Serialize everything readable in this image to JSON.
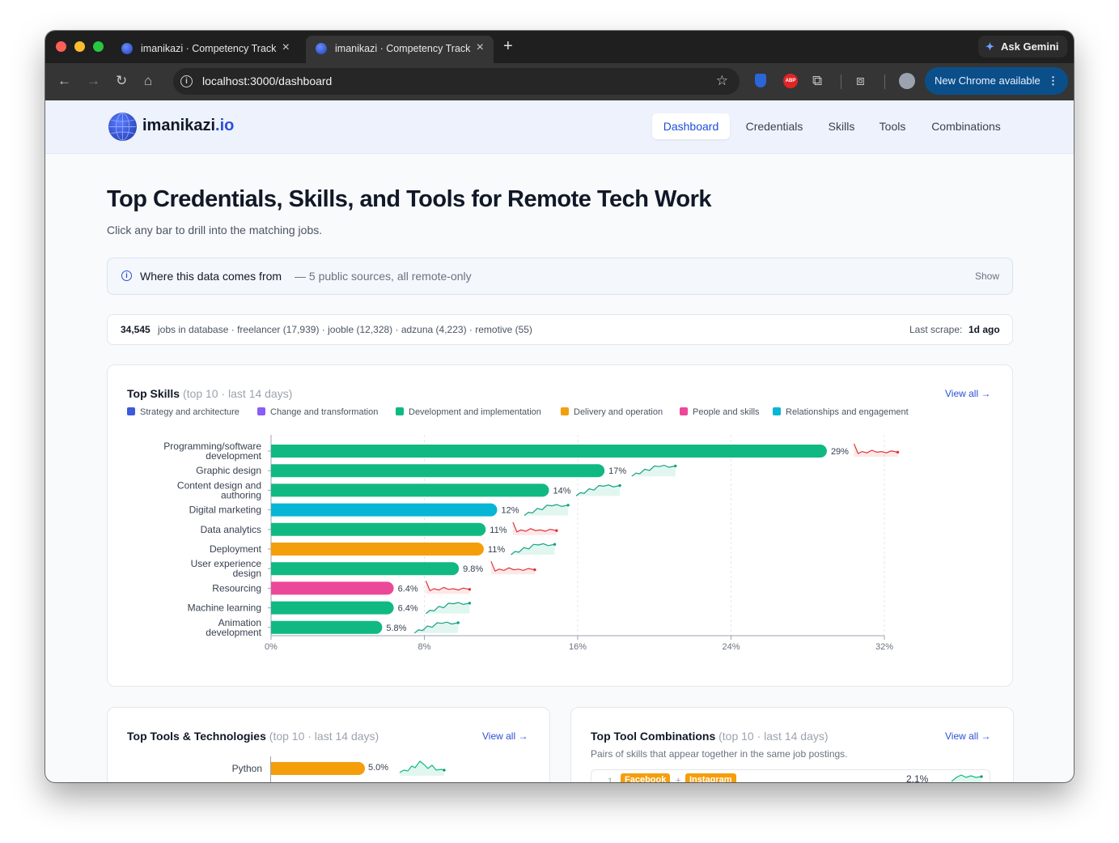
{
  "browser": {
    "tabs": [
      {
        "title": "imanikazi · Competency Track",
        "active": false
      },
      {
        "title": "imanikazi · Competency Track",
        "active": true
      }
    ],
    "gemini_label": "Ask Gemini",
    "url": "localhost:3000/dashboard",
    "update_label": "New Chrome available",
    "abp_label": "ABP"
  },
  "site": {
    "logo_main": "imanikazi",
    "logo_suffix": ".io",
    "nav": [
      "Dashboard",
      "Credentials",
      "Skills",
      "Tools",
      "Combinations"
    ],
    "active_nav": "Dashboard"
  },
  "page": {
    "title": "Top Credentials, Skills, and Tools for Remote Tech Work",
    "subtitle": "Click any bar to drill into the matching jobs.",
    "info_title": "Where this data comes from",
    "info_detail": "— 5 public sources, all remote-only",
    "info_toggle": "Show",
    "stats_count": "34,545",
    "stats_rest": "jobs in database · freelancer (17,939) · jooble (12,328) · adzuna (4,223) · remotive (55)",
    "last_scrape_label": "Last scrape:",
    "last_scrape_value": "1d ago"
  },
  "skills_card": {
    "title": "Top Skills",
    "meta": "(top 10 · last 14 days)",
    "view_all": "View all →",
    "legend": [
      {
        "label": "Strategy and architecture",
        "color": "#3b5bdb"
      },
      {
        "label": "Change and transformation",
        "color": "#8b5cf6"
      },
      {
        "label": "Development and implementation",
        "color": "#10b981"
      },
      {
        "label": "Delivery and operation",
        "color": "#f59e0b"
      },
      {
        "label": "People and skills",
        "color": "#ec4899"
      },
      {
        "label": "Relationships and engagement",
        "color": "#06b6d4"
      }
    ]
  },
  "tools_card": {
    "title": "Top Tools & Technologies",
    "meta": "(top 10 · last 14 days)",
    "view_all": "View all →",
    "first_label": "Python",
    "first_value": "5.0%"
  },
  "combos_card": {
    "title": "Top Tool Combinations",
    "meta": "(top 10 · last 14 days)",
    "view_all": "View all →",
    "description": "Pairs of skills that appear together in the same job postings.",
    "first_rank": "1",
    "first_a": "Facebook",
    "first_plus": "+",
    "first_b": "Instagram",
    "first_value": "2.1%"
  },
  "chart_data": {
    "type": "bar",
    "orientation": "horizontal",
    "categories": [
      [
        "Programming/software",
        "development"
      ],
      [
        "Graphic design"
      ],
      [
        "Content design and",
        "authoring"
      ],
      [
        "Digital marketing"
      ],
      [
        "Data analytics"
      ],
      [
        "Deployment"
      ],
      [
        "User experience",
        "design"
      ],
      [
        "Resourcing"
      ],
      [
        "Machine learning"
      ],
      [
        "Animation",
        "development"
      ]
    ],
    "values": [
      29,
      17.4,
      14.5,
      11.8,
      11.2,
      11.1,
      9.8,
      6.4,
      6.4,
      5.8
    ],
    "value_labels": [
      "29%",
      "17%",
      "14%",
      "12%",
      "11%",
      "11%",
      "9.8%",
      "6.4%",
      "6.4%",
      "5.8%"
    ],
    "bar_groups": [
      "Development and implementation",
      "Development and implementation",
      "Development and implementation",
      "Relationships and engagement",
      "Development and implementation",
      "Delivery and operation",
      "Development and implementation",
      "People and skills",
      "Development and implementation",
      "Development and implementation"
    ],
    "trend": [
      "down",
      "up",
      "up",
      "up",
      "down",
      "up",
      "down",
      "down",
      "up",
      "up"
    ],
    "xlim": [
      0,
      32
    ],
    "xticks": [
      "0%",
      "8%",
      "16%",
      "24%",
      "32%"
    ],
    "xlabel": "",
    "ylabel": "",
    "grid": true
  }
}
